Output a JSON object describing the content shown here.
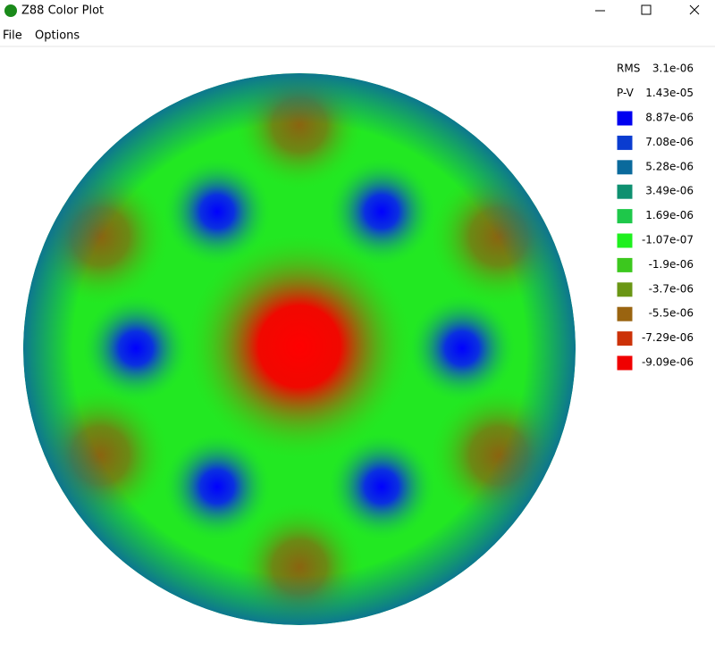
{
  "window": {
    "title": "Z88 Color Plot"
  },
  "menu": [
    "File",
    "Options"
  ],
  "stats": [
    {
      "label": "RMS",
      "value": "3.1e-06"
    },
    {
      "label": "P-V",
      "value": "1.43e-05"
    }
  ],
  "legend": [
    {
      "color": "#0000f0",
      "label": "8.87e-06"
    },
    {
      "color": "#0a3cd0",
      "label": "7.08e-06"
    },
    {
      "color": "#0a6a9c",
      "label": "5.28e-06"
    },
    {
      "color": "#0e9070",
      "label": "3.49e-06"
    },
    {
      "color": "#1ec84a",
      "label": "1.69e-06"
    },
    {
      "color": "#1ef01e",
      "label": "-1.07e-07"
    },
    {
      "color": "#3cc81e",
      "label": "-1.9e-06"
    },
    {
      "color": "#6a9614",
      "label": "-3.7e-06"
    },
    {
      "color": "#9a6410",
      "label": "-5.5e-06"
    },
    {
      "color": "#cc3208",
      "label": "-7.29e-06"
    },
    {
      "color": "#f00000",
      "label": "-9.09e-06"
    }
  ]
}
